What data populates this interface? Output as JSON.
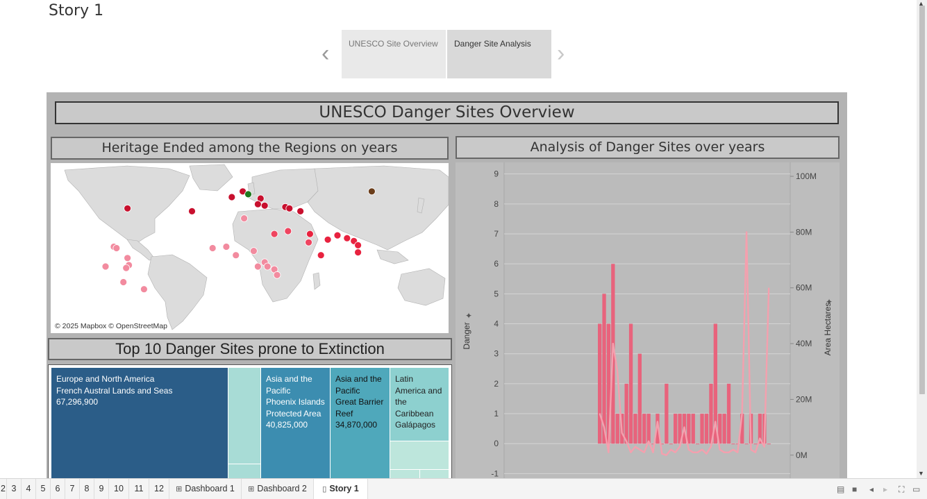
{
  "story": {
    "title": "Story 1",
    "prev_icon": "chevron-left-icon",
    "next_icon": "chevron-right-icon",
    "points": [
      "UNESCO Site Overview",
      "Danger Site Analysis"
    ],
    "active_point": "Danger Site Analysis"
  },
  "dashboard": {
    "title": "UNESCO Danger Sites Overview",
    "map_title": "Heritage Ended among the Regions on years",
    "map_credit": "© 2025 Mapbox © OpenStreetMap",
    "chart_title": "Analysis of Danger Sites over years",
    "treemap_title": "Top 10 Danger Sites prone to Extinction"
  },
  "chart_data": [
    {
      "type": "bar",
      "title": "Analysis of Danger Sites over years",
      "ylabel": "Danger",
      "y2label": "Area Hectares",
      "ylim": [
        -1.5,
        9.2
      ],
      "y2lim": [
        -12000000,
        103000000
      ],
      "y_ticks": [
        "9",
        "8",
        "7",
        "6",
        "5",
        "4",
        "3",
        "2",
        "1",
        "0",
        "-1"
      ],
      "y2_ticks": [
        "100M",
        "80M",
        "60M",
        "40M",
        "20M",
        "0M"
      ],
      "grid": true,
      "colors": {
        "bars": "#e8637c",
        "line": "#f4a0ae"
      },
      "series": [
        {
          "name": "Danger",
          "kind": "bar",
          "values": [
            4,
            5,
            4,
            6,
            1,
            1,
            2,
            4,
            1,
            3,
            1,
            1,
            0,
            1,
            0,
            2,
            0,
            1,
            1,
            1,
            1,
            1,
            0,
            1,
            1,
            2,
            4,
            1,
            1,
            2,
            0,
            0,
            1,
            0,
            1,
            0,
            1,
            1,
            0
          ]
        },
        {
          "name": "Area Hectares",
          "kind": "line",
          "values": [
            15000000,
            10000000,
            1000000,
            40000000,
            30000000,
            8000000,
            5000000,
            1000000,
            3000000,
            2000000,
            1000000,
            5000000,
            1000000,
            12000000,
            500000,
            0,
            2000000,
            1000000,
            3000000,
            10000000,
            2000000,
            1000000,
            1000000,
            2000000,
            500000,
            3000000,
            12000000,
            2000000,
            1000000,
            1000000,
            2000000,
            1000000,
            15000000,
            80000000,
            2000000,
            1000000,
            6000000,
            3000000,
            60000000
          ]
        }
      ]
    },
    {
      "type": "treemap",
      "title": "Top 10 Danger Sites prone to Extinction",
      "items": [
        {
          "region": "Europe and North America",
          "site": "French Austral Lands and Seas",
          "value": "67,296,900",
          "color": "#2b5d88"
        },
        {
          "region": "Asia and the Pacific",
          "site": "Phoenix Islands Protected Area",
          "value": "40,825,000",
          "color": "#3c8db0"
        },
        {
          "region": "Asia and the Pacific",
          "site": "Great Barrier Reef",
          "value": "34,870,000",
          "color": "#4fa8bb"
        },
        {
          "region": "Latin America and the Caribbean",
          "site": "Galápagos",
          "value": "",
          "color": "#8dd0cf"
        }
      ]
    }
  ],
  "map_points": [
    {
      "lon": -74,
      "lat": 40,
      "color": "#c8102e"
    },
    {
      "lon": -27,
      "lat": 38,
      "color": "#c8102e"
    },
    {
      "lon": 2,
      "lat": 48,
      "color": "#c8102e"
    },
    {
      "lon": 10,
      "lat": 52,
      "color": "#c8102e"
    },
    {
      "lon": 14,
      "lat": 50,
      "color": "#1e7a1e"
    },
    {
      "lon": 23,
      "lat": 47,
      "color": "#c8102e"
    },
    {
      "lon": 21,
      "lat": 43,
      "color": "#c8102e"
    },
    {
      "lon": 26,
      "lat": 42,
      "color": "#c8102e"
    },
    {
      "lon": 41,
      "lat": 41,
      "color": "#c8102e"
    },
    {
      "lon": 44,
      "lat": 40,
      "color": "#c8102e"
    },
    {
      "lon": 52,
      "lat": 38,
      "color": "#c8102e"
    },
    {
      "lon": 104,
      "lat": 52,
      "color": "#6b3e1b"
    },
    {
      "lon": 11,
      "lat": 33,
      "color": "#f28b9f"
    },
    {
      "lon": 33,
      "lat": 22,
      "color": "#ef4560"
    },
    {
      "lon": 43,
      "lat": 24,
      "color": "#ef4560"
    },
    {
      "lon": 59,
      "lat": 22,
      "color": "#e8223f"
    },
    {
      "lon": 58,
      "lat": 16,
      "color": "#ef4560"
    },
    {
      "lon": 72,
      "lat": 18,
      "color": "#e8223f"
    },
    {
      "lon": 79,
      "lat": 21,
      "color": "#e8223f"
    },
    {
      "lon": 86,
      "lat": 19,
      "color": "#e8223f"
    },
    {
      "lon": 91,
      "lat": 17,
      "color": "#e8223f"
    },
    {
      "lon": 94,
      "lat": 14,
      "color": "#e8223f"
    },
    {
      "lon": 94,
      "lat": 9,
      "color": "#e8223f"
    },
    {
      "lon": 67,
      "lat": 7,
      "color": "#e8223f"
    },
    {
      "lon": -84,
      "lat": 13,
      "color": "#f28b9f"
    },
    {
      "lon": -82,
      "lat": 12,
      "color": "#f28b9f"
    },
    {
      "lon": -74,
      "lat": 5,
      "color": "#f28b9f"
    },
    {
      "lon": -73,
      "lat": 0,
      "color": "#f28b9f"
    },
    {
      "lon": -75,
      "lat": -2,
      "color": "#f28b9f"
    },
    {
      "lon": -90,
      "lat": -1,
      "color": "#f28b9f"
    },
    {
      "lon": -77,
      "lat": -12,
      "color": "#f28b9f"
    },
    {
      "lon": -62,
      "lat": -17,
      "color": "#f28b9f"
    },
    {
      "lon": -12,
      "lat": 12,
      "color": "#f28b9f"
    },
    {
      "lon": -2,
      "lat": 13,
      "color": "#f28b9f"
    },
    {
      "lon": 5,
      "lat": 7,
      "color": "#f28b9f"
    },
    {
      "lon": 18,
      "lat": 10,
      "color": "#f28b9f"
    },
    {
      "lon": 26,
      "lat": 2,
      "color": "#f28b9f"
    },
    {
      "lon": 21,
      "lat": -1,
      "color": "#f28b9f"
    },
    {
      "lon": 28,
      "lat": -1,
      "color": "#f28b9f"
    },
    {
      "lon": 33,
      "lat": -3,
      "color": "#f28b9f"
    },
    {
      "lon": 35,
      "lat": -7,
      "color": "#f28b9f"
    }
  ],
  "tabs": {
    "items": [
      {
        "label": "2"
      },
      {
        "label": "3"
      },
      {
        "label": "4"
      },
      {
        "label": "5"
      },
      {
        "label": "6"
      },
      {
        "label": "7"
      },
      {
        "label": "8"
      },
      {
        "label": "9"
      },
      {
        "label": "10"
      },
      {
        "label": "11"
      },
      {
        "label": "12"
      },
      {
        "label": "Dashboard 1"
      },
      {
        "label": "Dashboard 2"
      },
      {
        "label": "Story 1"
      }
    ],
    "active": "Story 1",
    "dashboard_icon": "dashboard-grid-icon",
    "story_icon": "story-book-icon"
  }
}
